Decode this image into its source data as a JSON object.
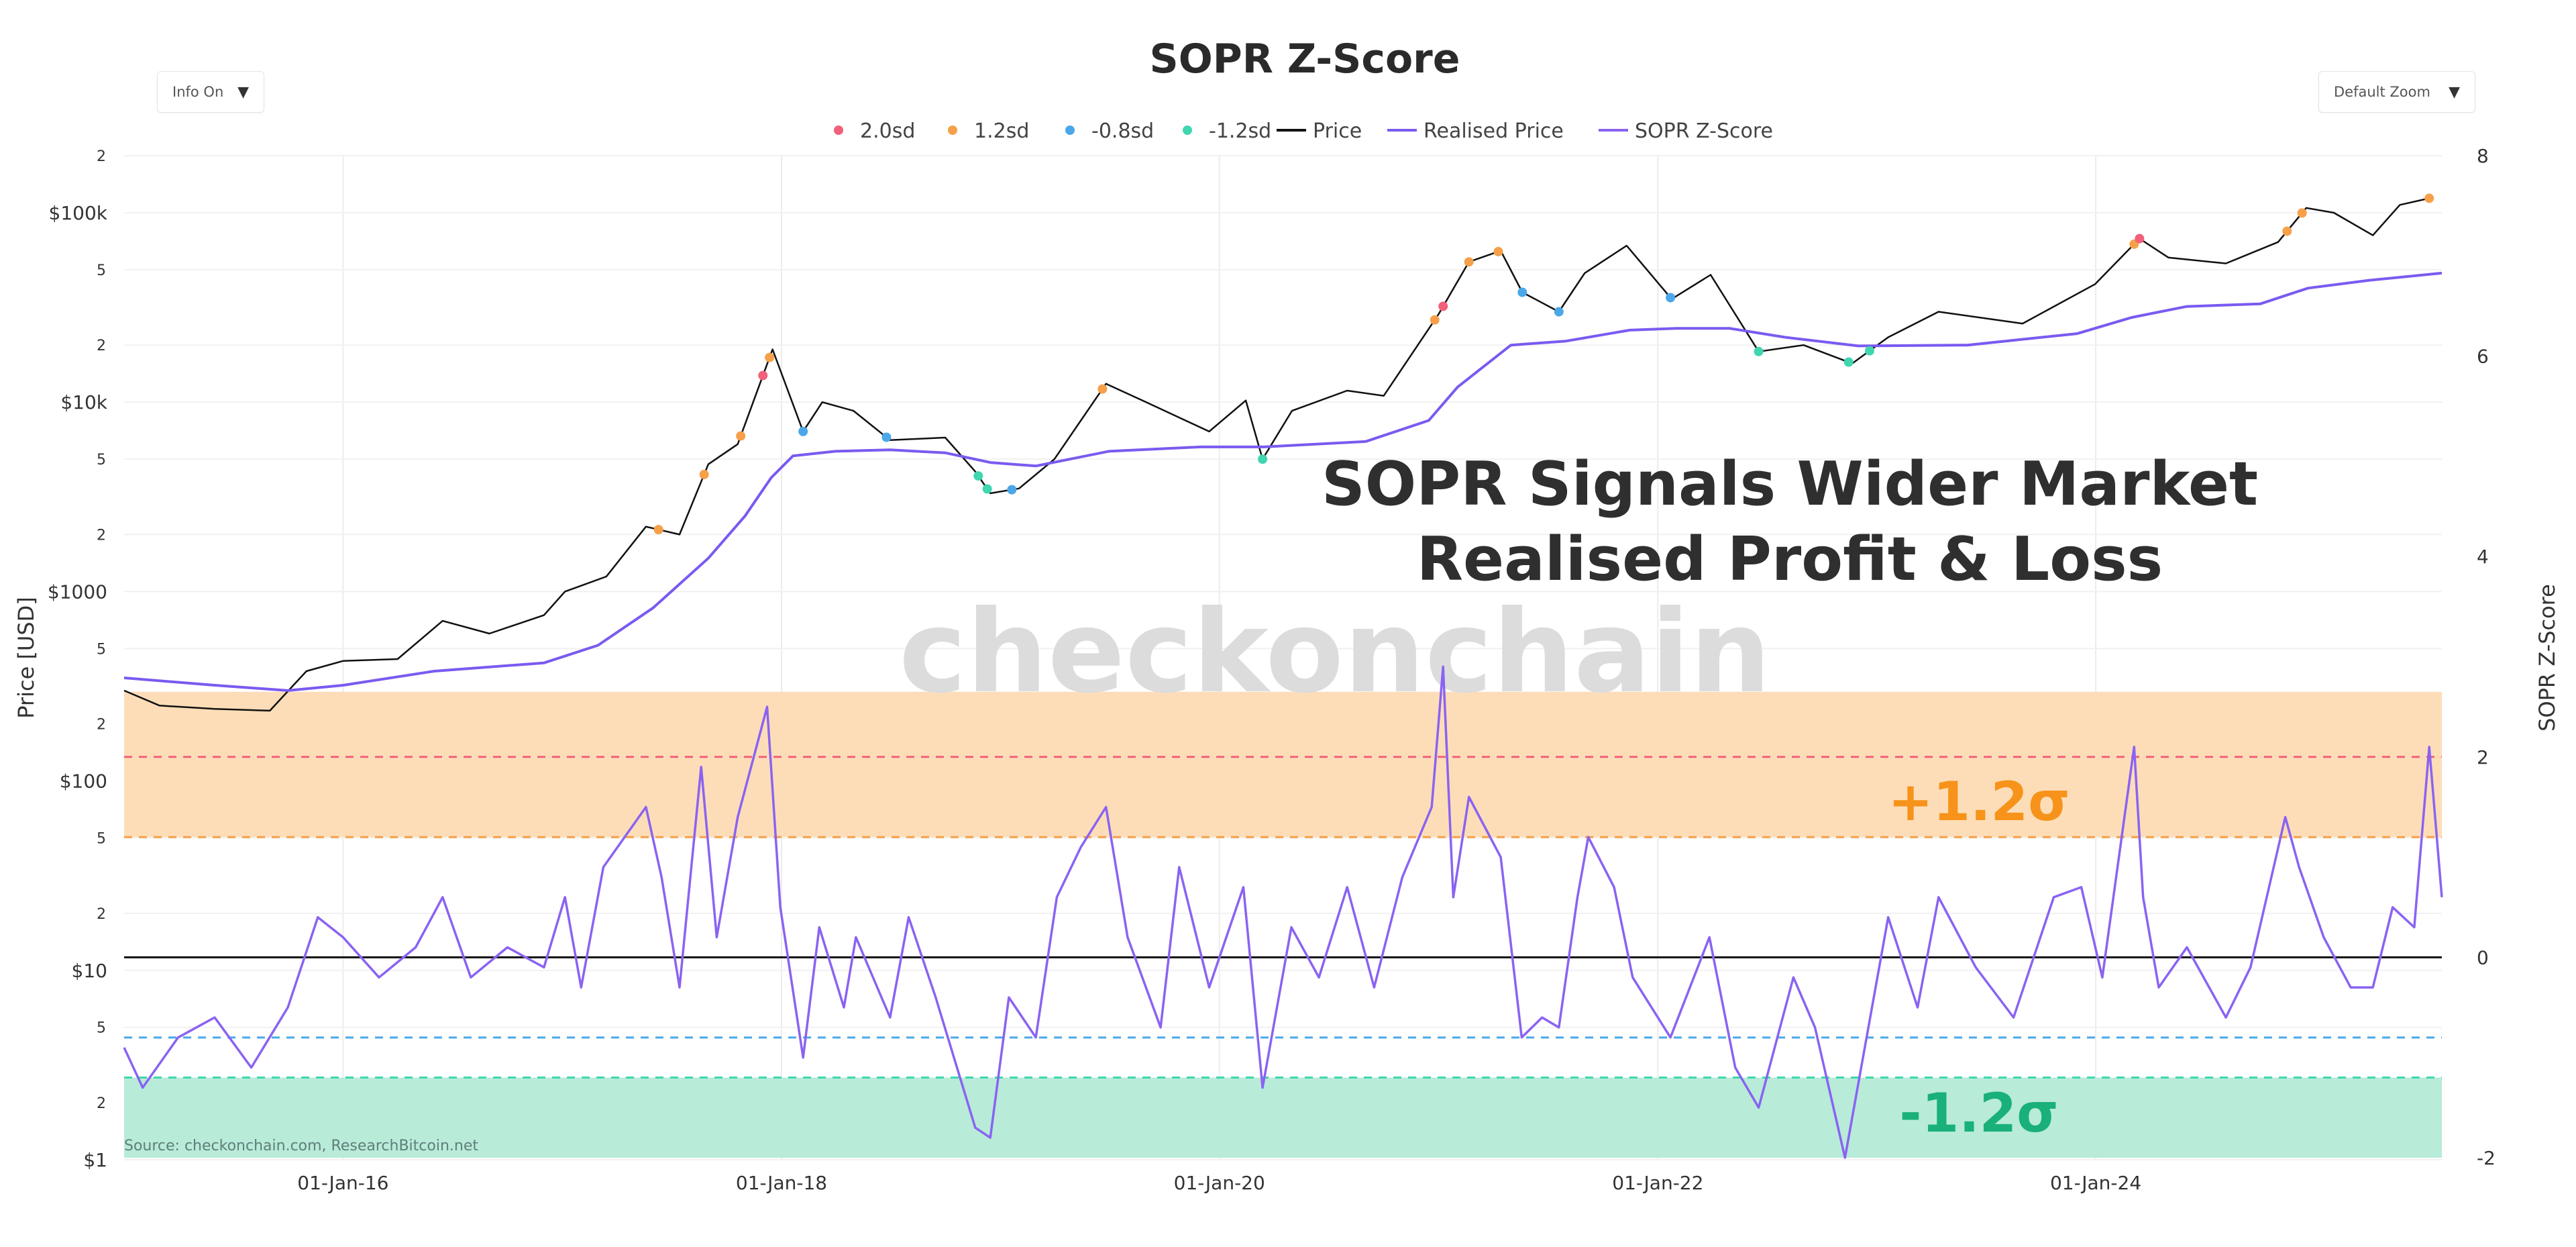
{
  "controls": {
    "info_label": "Info On",
    "zoom_label": "Default Zoom"
  },
  "annotations": {
    "headline_line1": "SOPR Signals Wider Market",
    "headline_line2": "Realised Profit & Loss",
    "band_upper_label": "+1.2σ",
    "band_lower_label": "-1.2σ",
    "watermark": "checkonchain",
    "source": "Source: checkonchain.com, ResearchBitcoin.net"
  },
  "colors": {
    "price": "#111111",
    "realised_price": "#7a5af0",
    "sopr_z": "#8a63f2",
    "sd_2": "#f2607a",
    "sd_1_2": "#f6a04a",
    "sd_neg_0_8": "#4aa8e8",
    "sd_neg_1_2": "#3fd6b0",
    "band_upper_fill": "#fdddb8",
    "band_lower_fill": "#b8ebd8",
    "band_upper_text": "#f7931a",
    "band_lower_text": "#19b07a",
    "watermark": "#d9d9d9"
  },
  "chart_data": {
    "type": "line",
    "title": "SOPR Z-Score",
    "x_type": "date",
    "x_range": [
      "2015-01-01",
      "2025-07-31"
    ],
    "x_ticks": [
      "2016-01-01",
      "2018-01-01",
      "2020-01-01",
      "2022-01-01",
      "2024-01-01"
    ],
    "x_tick_labels": [
      "01-Jan-16",
      "01-Jan-18",
      "01-Jan-20",
      "01-Jan-22",
      "01-Jan-24"
    ],
    "y_left": {
      "label": "Price [USD]",
      "scale": "log",
      "range": [
        1,
        200000
      ],
      "major_ticks": [
        1,
        10,
        100,
        1000,
        10000,
        100000
      ],
      "major_tick_labels": [
        "$1",
        "$10",
        "$100",
        "$1000",
        "$10k",
        "$100k"
      ],
      "minor_ticks": [
        2,
        5,
        20,
        50,
        200,
        500,
        2000,
        5000,
        20000,
        50000,
        200000
      ],
      "minor_tick_labels": [
        "2",
        "5",
        "2",
        "5",
        "2",
        "5",
        "2",
        "5",
        "2",
        "5",
        "2"
      ]
    },
    "y_right": {
      "label": "SOPR Z-Score",
      "scale": "linear",
      "range": [
        -2,
        8
      ],
      "ticks": [
        -2,
        0,
        2,
        4,
        6,
        8
      ],
      "tick_labels": [
        "-2",
        "0",
        "2",
        "4",
        "6",
        "8"
      ]
    },
    "legend": {
      "placement": "top-center",
      "entries": [
        {
          "label": "2.0sd",
          "kind": "marker",
          "color_key": "sd_2"
        },
        {
          "label": "1.2sd",
          "kind": "marker",
          "color_key": "sd_1_2"
        },
        {
          "label": "-0.8sd",
          "kind": "marker",
          "color_key": "sd_neg_0_8"
        },
        {
          "label": "-1.2sd",
          "kind": "marker",
          "color_key": "sd_neg_1_2"
        },
        {
          "label": "Price",
          "kind": "line",
          "color_key": "price"
        },
        {
          "label": "Realised Price",
          "kind": "line",
          "color_key": "realised_price"
        },
        {
          "label": "SOPR Z-Score",
          "kind": "line",
          "color_key": "sopr_z"
        }
      ]
    },
    "reference_lines": [
      {
        "y": 2.0,
        "axis": "right",
        "style": "dashed",
        "color_key": "sd_2"
      },
      {
        "y": 1.2,
        "axis": "right",
        "style": "dashed",
        "color_key": "sd_1_2"
      },
      {
        "y": 0,
        "axis": "right",
        "style": "solid",
        "color_key": "price"
      },
      {
        "y": -0.8,
        "axis": "right",
        "style": "dashed",
        "color_key": "sd_neg_0_8"
      },
      {
        "y": -1.2,
        "axis": "right",
        "style": "dashed",
        "color_key": "sd_neg_1_2"
      }
    ],
    "bands": [
      {
        "from": 1.2,
        "to": 2.65,
        "axis": "right",
        "color_key": "band_upper_fill"
      },
      {
        "from": -2.0,
        "to": -1.2,
        "axis": "right",
        "color_key": "band_lower_fill"
      }
    ],
    "grid": true,
    "series": [
      {
        "name": "Price",
        "axis": "left",
        "points": [
          [
            "2015-01-01",
            300
          ],
          [
            "2015-03-01",
            250
          ],
          [
            "2015-06-01",
            240
          ],
          [
            "2015-09-01",
            235
          ],
          [
            "2015-11-01",
            380
          ],
          [
            "2016-01-01",
            430
          ],
          [
            "2016-04-01",
            440
          ],
          [
            "2016-06-15",
            700
          ],
          [
            "2016-09-01",
            600
          ],
          [
            "2016-12-01",
            750
          ],
          [
            "2017-01-05",
            1000
          ],
          [
            "2017-03-15",
            1200
          ],
          [
            "2017-05-20",
            2200
          ],
          [
            "2017-07-15",
            2000
          ],
          [
            "2017-09-01",
            4700
          ],
          [
            "2017-10-20",
            6000
          ],
          [
            "2017-12-17",
            19000
          ],
          [
            "2018-02-06",
            7000
          ],
          [
            "2018-03-10",
            10000
          ],
          [
            "2018-05-01",
            9000
          ],
          [
            "2018-07-01",
            6300
          ],
          [
            "2018-10-01",
            6500
          ],
          [
            "2018-11-20",
            4300
          ],
          [
            "2018-12-15",
            3300
          ],
          [
            "2019-02-01",
            3500
          ],
          [
            "2019-04-01",
            5000
          ],
          [
            "2019-06-26",
            12500
          ],
          [
            "2019-09-01",
            10000
          ],
          [
            "2019-12-15",
            7000
          ],
          [
            "2020-02-14",
            10200
          ],
          [
            "2020-03-13",
            5000
          ],
          [
            "2020-05-01",
            9000
          ],
          [
            "2020-08-01",
            11500
          ],
          [
            "2020-10-01",
            10800
          ],
          [
            "2020-12-31",
            29000
          ],
          [
            "2021-02-20",
            55000
          ],
          [
            "2021-04-14",
            63000
          ],
          [
            "2021-05-20",
            38000
          ],
          [
            "2021-07-20",
            30000
          ],
          [
            "2021-09-01",
            48000
          ],
          [
            "2021-11-10",
            67000
          ],
          [
            "2022-01-24",
            35000
          ],
          [
            "2022-03-30",
            47000
          ],
          [
            "2022-06-18",
            18500
          ],
          [
            "2022-09-01",
            20000
          ],
          [
            "2022-11-21",
            16000
          ],
          [
            "2023-01-20",
            22000
          ],
          [
            "2023-04-14",
            30000
          ],
          [
            "2023-09-01",
            26000
          ],
          [
            "2023-12-31",
            42000
          ],
          [
            "2024-03-14",
            73000
          ],
          [
            "2024-05-01",
            58000
          ],
          [
            "2024-08-05",
            54000
          ],
          [
            "2024-10-31",
            70000
          ],
          [
            "2024-12-17",
            106000
          ],
          [
            "2025-02-01",
            100000
          ],
          [
            "2025-04-07",
            76000
          ],
          [
            "2025-05-22",
            110000
          ],
          [
            "2025-07-14",
            120000
          ]
        ]
      },
      {
        "name": "Realised Price",
        "axis": "left",
        "points": [
          [
            "2015-01-01",
            350
          ],
          [
            "2015-06-01",
            320
          ],
          [
            "2015-10-01",
            300
          ],
          [
            "2016-01-01",
            320
          ],
          [
            "2016-06-01",
            380
          ],
          [
            "2016-12-01",
            420
          ],
          [
            "2017-03-01",
            520
          ],
          [
            "2017-06-01",
            820
          ],
          [
            "2017-09-01",
            1500
          ],
          [
            "2017-11-01",
            2500
          ],
          [
            "2017-12-15",
            4000
          ],
          [
            "2018-01-20",
            5200
          ],
          [
            "2018-04-01",
            5500
          ],
          [
            "2018-07-01",
            5600
          ],
          [
            "2018-10-01",
            5400
          ],
          [
            "2018-12-15",
            4800
          ],
          [
            "2019-03-01",
            4600
          ],
          [
            "2019-07-01",
            5500
          ],
          [
            "2019-12-01",
            5800
          ],
          [
            "2020-03-15",
            5800
          ],
          [
            "2020-09-01",
            6200
          ],
          [
            "2020-12-15",
            8000
          ],
          [
            "2021-02-01",
            12000
          ],
          [
            "2021-05-01",
            20000
          ],
          [
            "2021-08-01",
            21000
          ],
          [
            "2021-11-15",
            24000
          ],
          [
            "2022-02-01",
            24500
          ],
          [
            "2022-05-01",
            24500
          ],
          [
            "2022-08-01",
            22000
          ],
          [
            "2022-12-01",
            19800
          ],
          [
            "2023-06-01",
            20000
          ],
          [
            "2023-12-01",
            23000
          ],
          [
            "2024-03-01",
            28000
          ],
          [
            "2024-06-01",
            32000
          ],
          [
            "2024-10-01",
            33000
          ],
          [
            "2024-12-20",
            40000
          ],
          [
            "2025-04-01",
            44000
          ],
          [
            "2025-07-31",
            48000
          ]
        ]
      },
      {
        "name": "SOPR Z-Score",
        "axis": "right",
        "points": [
          [
            "2015-01-01",
            -0.9
          ],
          [
            "2015-02-01",
            -1.3
          ],
          [
            "2015-04-01",
            -0.8
          ],
          [
            "2015-06-01",
            -0.6
          ],
          [
            "2015-08-01",
            -1.1
          ],
          [
            "2015-10-01",
            -0.5
          ],
          [
            "2015-11-20",
            0.4
          ],
          [
            "2016-01-01",
            0.2
          ],
          [
            "2016-03-01",
            -0.2
          ],
          [
            "2016-05-01",
            0.1
          ],
          [
            "2016-06-15",
            0.6
          ],
          [
            "2016-08-01",
            -0.2
          ],
          [
            "2016-10-01",
            0.1
          ],
          [
            "2016-12-01",
            -0.1
          ],
          [
            "2017-01-05",
            0.6
          ],
          [
            "2017-02-01",
            -0.3
          ],
          [
            "2017-03-10",
            0.9
          ],
          [
            "2017-05-20",
            1.5
          ],
          [
            "2017-06-15",
            0.8
          ],
          [
            "2017-07-15",
            -0.3
          ],
          [
            "2017-08-20",
            1.9
          ],
          [
            "2017-09-15",
            0.2
          ],
          [
            "2017-10-20",
            1.4
          ],
          [
            "2017-12-08",
            2.5
          ],
          [
            "2017-12-30",
            0.5
          ],
          [
            "2018-02-06",
            -1.0
          ],
          [
            "2018-03-05",
            0.3
          ],
          [
            "2018-04-15",
            -0.5
          ],
          [
            "2018-05-05",
            0.2
          ],
          [
            "2018-07-01",
            -0.6
          ],
          [
            "2018-08-01",
            0.4
          ],
          [
            "2018-09-15",
            -0.4
          ],
          [
            "2018-11-20",
            -1.7
          ],
          [
            "2018-12-15",
            -1.8
          ],
          [
            "2019-01-15",
            -0.4
          ],
          [
            "2019-03-01",
            -0.8
          ],
          [
            "2019-04-05",
            0.6
          ],
          [
            "2019-05-15",
            1.1
          ],
          [
            "2019-06-26",
            1.5
          ],
          [
            "2019-08-01",
            0.2
          ],
          [
            "2019-09-25",
            -0.7
          ],
          [
            "2019-10-26",
            0.9
          ],
          [
            "2019-12-15",
            -0.3
          ],
          [
            "2020-02-10",
            0.7
          ],
          [
            "2020-03-13",
            -1.3
          ],
          [
            "2020-04-30",
            0.3
          ],
          [
            "2020-06-15",
            -0.2
          ],
          [
            "2020-08-01",
            0.7
          ],
          [
            "2020-09-15",
            -0.3
          ],
          [
            "2020-11-01",
            0.8
          ],
          [
            "2020-12-20",
            1.5
          ],
          [
            "2021-01-08",
            2.9
          ],
          [
            "2021-01-25",
            0.6
          ],
          [
            "2021-02-20",
            1.6
          ],
          [
            "2021-04-14",
            1.0
          ],
          [
            "2021-05-19",
            -0.8
          ],
          [
            "2021-06-22",
            -0.6
          ],
          [
            "2021-07-20",
            -0.7
          ],
          [
            "2021-08-20",
            0.6
          ],
          [
            "2021-09-07",
            1.2
          ],
          [
            "2021-10-20",
            0.7
          ],
          [
            "2021-11-20",
            -0.2
          ],
          [
            "2022-01-22",
            -0.8
          ],
          [
            "2022-03-28",
            0.2
          ],
          [
            "2022-05-10",
            -1.1
          ],
          [
            "2022-06-18",
            -1.5
          ],
          [
            "2022-08-15",
            -0.2
          ],
          [
            "2022-09-20",
            -0.7
          ],
          [
            "2022-11-09",
            -2.0
          ],
          [
            "2022-12-15",
            -0.8
          ],
          [
            "2023-01-20",
            0.4
          ],
          [
            "2023-03-10",
            -0.5
          ],
          [
            "2023-04-14",
            0.6
          ],
          [
            "2023-06-15",
            -0.1
          ],
          [
            "2023-08-17",
            -0.6
          ],
          [
            "2023-10-23",
            0.6
          ],
          [
            "2023-12-08",
            0.7
          ],
          [
            "2024-01-12",
            -0.2
          ],
          [
            "2024-03-05",
            2.1
          ],
          [
            "2024-03-20",
            0.6
          ],
          [
            "2024-04-15",
            -0.3
          ],
          [
            "2024-06-01",
            0.1
          ],
          [
            "2024-08-05",
            -0.6
          ],
          [
            "2024-09-15",
            -0.1
          ],
          [
            "2024-11-12",
            1.4
          ],
          [
            "2024-12-05",
            0.9
          ],
          [
            "2025-01-15",
            0.2
          ],
          [
            "2025-03-01",
            -0.3
          ],
          [
            "2025-04-07",
            -0.3
          ],
          [
            "2025-05-10",
            0.5
          ],
          [
            "2025-06-15",
            0.3
          ],
          [
            "2025-07-10",
            2.1
          ],
          [
            "2025-07-31",
            0.6
          ]
        ]
      }
    ],
    "sd_markers": {
      "axis": "left",
      "points": [
        {
          "date": "2017-06-10",
          "level": "1.2sd"
        },
        {
          "date": "2017-08-25",
          "level": "1.2sd"
        },
        {
          "date": "2017-10-25",
          "level": "1.2sd"
        },
        {
          "date": "2017-12-01",
          "level": "2.0sd"
        },
        {
          "date": "2017-12-12",
          "level": "1.2sd"
        },
        {
          "date": "2018-02-06",
          "level": "-0.8sd"
        },
        {
          "date": "2018-06-25",
          "level": "-0.8sd"
        },
        {
          "date": "2018-11-25",
          "level": "-1.2sd"
        },
        {
          "date": "2018-12-10",
          "level": "-1.2sd"
        },
        {
          "date": "2019-01-20",
          "level": "-0.8sd"
        },
        {
          "date": "2019-06-20",
          "level": "1.2sd"
        },
        {
          "date": "2020-03-13",
          "level": "-1.2sd"
        },
        {
          "date": "2020-12-25",
          "level": "1.2sd"
        },
        {
          "date": "2021-01-08",
          "level": "2.0sd"
        },
        {
          "date": "2021-02-20",
          "level": "1.2sd"
        },
        {
          "date": "2021-04-10",
          "level": "1.2sd"
        },
        {
          "date": "2021-05-20",
          "level": "-0.8sd"
        },
        {
          "date": "2021-07-20",
          "level": "-0.8sd"
        },
        {
          "date": "2022-01-22",
          "level": "-0.8sd"
        },
        {
          "date": "2022-06-18",
          "level": "-1.2sd"
        },
        {
          "date": "2022-11-15",
          "level": "-1.2sd"
        },
        {
          "date": "2022-12-20",
          "level": "-1.2sd"
        },
        {
          "date": "2024-03-05",
          "level": "1.2sd"
        },
        {
          "date": "2024-03-14",
          "level": "2.0sd"
        },
        {
          "date": "2024-11-15",
          "level": "1.2sd"
        },
        {
          "date": "2024-12-10",
          "level": "1.2sd"
        },
        {
          "date": "2025-07-10",
          "level": "1.2sd"
        }
      ]
    }
  }
}
